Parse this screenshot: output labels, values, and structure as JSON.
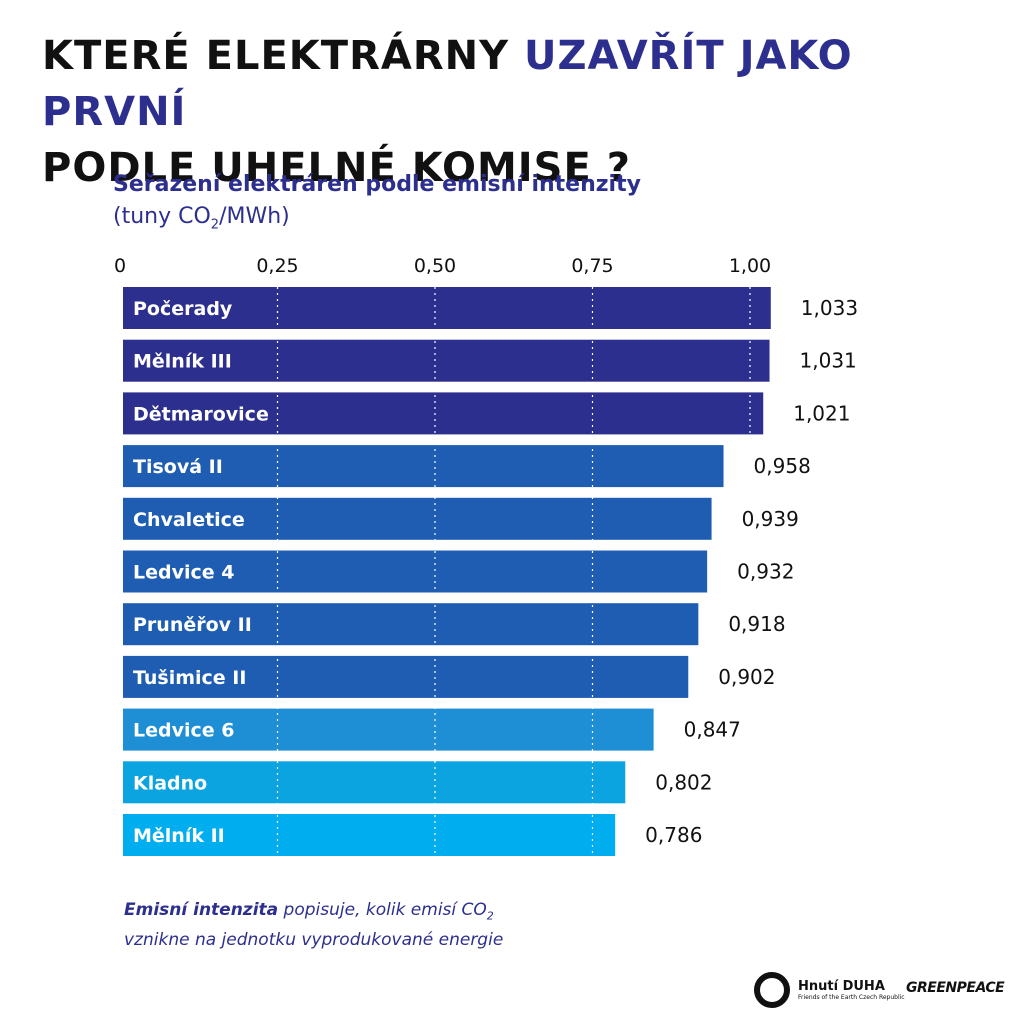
{
  "headline": {
    "part1": "KTERÉ ELEKTRÁRNY ",
    "accent": "UZAVŘÍT JAKO PRVNÍ",
    "part2": "PODLE UHELNÉ KOMISE ?"
  },
  "footnote": {
    "bold": "Emisní intenzita",
    "text1": " popisuje, kolik emisí CO",
    "sub": "2",
    "text2": "vznikne na jednotku vyprodukované energie"
  },
  "logos": {
    "duha_name": "Hnutí DUHA",
    "duha_sub": "Friends of the Earth Czech Republic",
    "greenpeace": "GREENPEACE"
  },
  "chart_data": {
    "type": "bar",
    "orientation": "horizontal",
    "title": "Seřazení elektráren podle emisní intenzity",
    "unit_prefix": "(tuny CO",
    "unit_sub": "2",
    "unit_suffix": "/MWh)",
    "xlim": [
      0,
      1.0
    ],
    "ticks": [
      {
        "value": 0,
        "label": "0"
      },
      {
        "value": 0.25,
        "label": "0,25"
      },
      {
        "value": 0.5,
        "label": "0,50"
      },
      {
        "value": 0.75,
        "label": "0,75"
      },
      {
        "value": 1.0,
        "label": "1,00"
      }
    ],
    "grid": "dotted vertical",
    "categories": [
      "Počerady",
      "Mělník III",
      "Dětmarovice",
      "Tisová II",
      "Chvaletice",
      "Ledvice 4",
      "Pruněřov II",
      "Tušimice II",
      "Ledvice 6",
      "Kladno",
      "Mělník II"
    ],
    "values": [
      1.033,
      1.031,
      1.021,
      0.958,
      0.939,
      0.932,
      0.918,
      0.902,
      0.847,
      0.802,
      0.786
    ],
    "value_labels": [
      "1,033",
      "1,031",
      "1,021",
      "0,958",
      "0,939",
      "0,932",
      "0,918",
      "0,902",
      "0,847",
      "0,802",
      "0,786"
    ],
    "colors": [
      "#2d2f8f",
      "#2d2f8f",
      "#2d2f8f",
      "#1f5db3",
      "#1f5db3",
      "#1f5db3",
      "#1f5db3",
      "#1f5db3",
      "#1e8fd5",
      "#0ba3e0",
      "#00aeef"
    ]
  }
}
